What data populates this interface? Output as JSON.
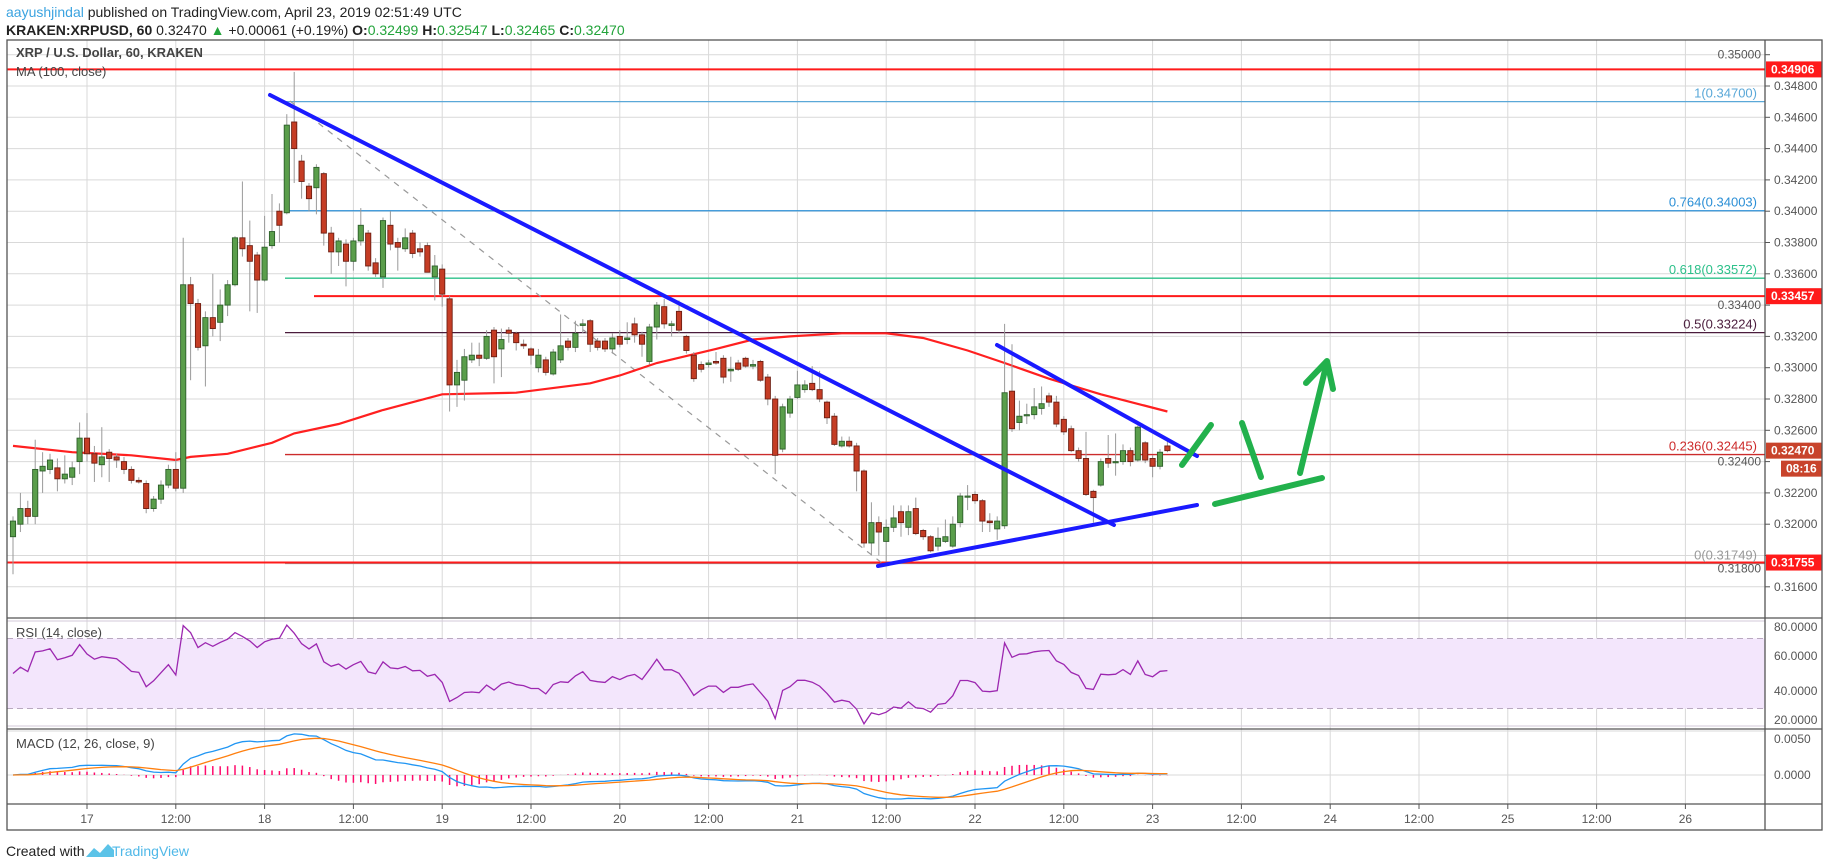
{
  "header": {
    "author": "aayushjindal",
    "published": " published on TradingView.com, April 23, 2019 02:51:49 UTC",
    "symbol": "KRAKEN:XRPUSD, 60",
    "last": "0.32470",
    "change": "+0.00061 (+0.19%)",
    "o_label": "O:",
    "o": "0.32499",
    "h_label": "H:",
    "h": "0.32547",
    "l_label": "L:",
    "l": "0.32465",
    "c_label": "C:",
    "c": "0.32470"
  },
  "footer": {
    "created_with": "Created with",
    "brand": "TradingView"
  },
  "colors": {
    "up": "#5a9e4b",
    "up_border": "#2d5f2a",
    "down": "#c53d25",
    "down_border": "#6e1e12",
    "ma": "#ff2020",
    "trendline": "#1a1aff",
    "arrow": "#22b14c",
    "rsi": "#9c27b0",
    "rsi_band": "#f3e6fc",
    "macd": "#2196f3",
    "signal": "#ff7f0e",
    "hist": "#ff0a6c",
    "author": "#3ba3e0",
    "ohlc": "#22a33a",
    "level_box": "#ff1a1a",
    "price_box": "#c8432b"
  },
  "chart_data": {
    "type": "candlestick",
    "title": "XRP / U.S. Dollar, 60, KRAKEN",
    "first_candle": "2019-04-16 14:00",
    "interval_minutes": 60,
    "price_range": [
      0.3145,
      0.3509
    ],
    "grid": true,
    "price_ticks": [
      "0.35000",
      "0.34800",
      "0.34600",
      "0.34400",
      "0.34200",
      "0.34000",
      "0.33800",
      "0.33600",
      "0.33400",
      "0.33200",
      "0.33000",
      "0.32800",
      "0.32600",
      "0.32400",
      "0.32200",
      "0.32000",
      "0.31800",
      "0.31600"
    ],
    "time_ticks": [
      "17",
      "12:00",
      "18",
      "12:00",
      "19",
      "12:00",
      "20",
      "12:00",
      "21",
      "12:00",
      "22",
      "12:00",
      "23",
      "12:00",
      "24",
      "12:00",
      "25",
      "12:00",
      "26"
    ],
    "ohlc": [
      [
        0.3192,
        0.3205,
        0.3168,
        0.3202
      ],
      [
        0.32,
        0.322,
        0.3195,
        0.321
      ],
      [
        0.321,
        0.3215,
        0.32,
        0.3205
      ],
      [
        0.3205,
        0.3254,
        0.32,
        0.3235
      ],
      [
        0.3234,
        0.3246,
        0.322,
        0.3237
      ],
      [
        0.3235,
        0.3245,
        0.3232,
        0.3241
      ],
      [
        0.3236,
        0.3242,
        0.3221,
        0.3229
      ],
      [
        0.3229,
        0.3244,
        0.3226,
        0.3232
      ],
      [
        0.323,
        0.324,
        0.3225,
        0.3236
      ],
      [
        0.324,
        0.3265,
        0.3232,
        0.3255
      ],
      [
        0.3255,
        0.3271,
        0.324,
        0.3245
      ],
      [
        0.3245,
        0.325,
        0.3227,
        0.3239
      ],
      [
        0.3238,
        0.3262,
        0.323,
        0.3243
      ],
      [
        0.3246,
        0.3248,
        0.3227,
        0.3242
      ],
      [
        0.3243,
        0.3245,
        0.3236,
        0.3241
      ],
      [
        0.324,
        0.3243,
        0.3232,
        0.3235
      ],
      [
        0.3235,
        0.3237,
        0.3226,
        0.3228
      ],
      [
        0.3228,
        0.323,
        0.3226,
        0.3227
      ],
      [
        0.3226,
        0.3228,
        0.3207,
        0.321
      ],
      [
        0.321,
        0.3218,
        0.3208,
        0.3216
      ],
      [
        0.3216,
        0.3228,
        0.3213,
        0.3225
      ],
      [
        0.3225,
        0.3238,
        0.3223,
        0.3235
      ],
      [
        0.3235,
        0.3246,
        0.3221,
        0.3223
      ],
      [
        0.3223,
        0.3383,
        0.322,
        0.3353
      ],
      [
        0.3353,
        0.3358,
        0.3292,
        0.3341
      ],
      [
        0.3341,
        0.3344,
        0.3311,
        0.3313
      ],
      [
        0.3314,
        0.3336,
        0.3288,
        0.3332
      ],
      [
        0.3332,
        0.336,
        0.332,
        0.3325
      ],
      [
        0.3329,
        0.335,
        0.3317,
        0.334
      ],
      [
        0.334,
        0.3356,
        0.3333,
        0.3353
      ],
      [
        0.3353,
        0.3384,
        0.3352,
        0.3383
      ],
      [
        0.3383,
        0.3419,
        0.3371,
        0.3376
      ],
      [
        0.3378,
        0.3394,
        0.3336,
        0.3368
      ],
      [
        0.3372,
        0.3374,
        0.3335,
        0.3356
      ],
      [
        0.3356,
        0.3397,
        0.3355,
        0.3377
      ],
      [
        0.3378,
        0.3411,
        0.3376,
        0.3387
      ],
      [
        0.34,
        0.3405,
        0.338,
        0.3391
      ],
      [
        0.3399,
        0.3462,
        0.3398,
        0.3455
      ],
      [
        0.3457,
        0.3489,
        0.3418,
        0.344
      ],
      [
        0.3432,
        0.3436,
        0.3408,
        0.3419
      ],
      [
        0.3416,
        0.3418,
        0.34,
        0.3408
      ],
      [
        0.3415,
        0.343,
        0.3398,
        0.3428
      ],
      [
        0.3424,
        0.3425,
        0.3378,
        0.3386
      ],
      [
        0.3386,
        0.339,
        0.336,
        0.3374
      ],
      [
        0.3374,
        0.3383,
        0.3365,
        0.3381
      ],
      [
        0.3379,
        0.3382,
        0.3352,
        0.3368
      ],
      [
        0.3368,
        0.3383,
        0.3362,
        0.3381
      ],
      [
        0.3381,
        0.3402,
        0.3378,
        0.3391
      ],
      [
        0.3386,
        0.3388,
        0.3362,
        0.3365
      ],
      [
        0.3367,
        0.337,
        0.3358,
        0.336
      ],
      [
        0.3358,
        0.3396,
        0.3351,
        0.3394
      ],
      [
        0.3391,
        0.34,
        0.3375,
        0.3379
      ],
      [
        0.338,
        0.3383,
        0.3362,
        0.3377
      ],
      [
        0.3376,
        0.3389,
        0.3374,
        0.3383
      ],
      [
        0.3386,
        0.3388,
        0.337,
        0.3373
      ],
      [
        0.3376,
        0.338,
        0.3371,
        0.3374
      ],
      [
        0.3378,
        0.338,
        0.3361,
        0.3361
      ],
      [
        0.3358,
        0.3372,
        0.3343,
        0.3365
      ],
      [
        0.3363,
        0.3366,
        0.3339,
        0.3347
      ],
      [
        0.3344,
        0.3346,
        0.3272,
        0.3289
      ],
      [
        0.3289,
        0.3305,
        0.3275,
        0.3297
      ],
      [
        0.3292,
        0.3312,
        0.3279,
        0.3307
      ],
      [
        0.3305,
        0.3316,
        0.3303,
        0.3308
      ],
      [
        0.3308,
        0.3316,
        0.3301,
        0.3306
      ],
      [
        0.3306,
        0.3324,
        0.3305,
        0.332
      ],
      [
        0.3324,
        0.3326,
        0.329,
        0.3307
      ],
      [
        0.3312,
        0.3325,
        0.3294,
        0.3318
      ],
      [
        0.3324,
        0.3326,
        0.3316,
        0.3322
      ],
      [
        0.3322,
        0.3323,
        0.3311,
        0.3316
      ],
      [
        0.3315,
        0.3318,
        0.3312,
        0.3314
      ],
      [
        0.3312,
        0.3313,
        0.3302,
        0.3308
      ],
      [
        0.33,
        0.3312,
        0.3297,
        0.3308
      ],
      [
        0.3305,
        0.3307,
        0.3295,
        0.3297
      ],
      [
        0.3296,
        0.3312,
        0.3295,
        0.331
      ],
      [
        0.3305,
        0.3334,
        0.3303,
        0.3314
      ],
      [
        0.3317,
        0.3319,
        0.3311,
        0.3313
      ],
      [
        0.3313,
        0.333,
        0.331,
        0.3322
      ],
      [
        0.3327,
        0.3331,
        0.3322,
        0.3328
      ],
      [
        0.333,
        0.3331,
        0.331,
        0.3315
      ],
      [
        0.3317,
        0.3319,
        0.3311,
        0.3313
      ],
      [
        0.3317,
        0.3319,
        0.331,
        0.3312
      ],
      [
        0.3312,
        0.3322,
        0.3309,
        0.3319
      ],
      [
        0.332,
        0.3324,
        0.3313,
        0.3315
      ],
      [
        0.3318,
        0.3329,
        0.3315,
        0.3319
      ],
      [
        0.3328,
        0.3332,
        0.3316,
        0.3321
      ],
      [
        0.3321,
        0.3323,
        0.3307,
        0.3315
      ],
      [
        0.3304,
        0.3328,
        0.3302,
        0.3326
      ],
      [
        0.3326,
        0.3342,
        0.3318,
        0.334
      ],
      [
        0.3339,
        0.3344,
        0.3325,
        0.3328
      ],
      [
        0.3327,
        0.333,
        0.332,
        0.3328
      ],
      [
        0.3336,
        0.3343,
        0.3322,
        0.3324
      ],
      [
        0.332,
        0.3321,
        0.3309,
        0.3311
      ],
      [
        0.3308,
        0.331,
        0.3291,
        0.3293
      ],
      [
        0.3302,
        0.3304,
        0.3297,
        0.3299
      ],
      [
        0.3302,
        0.3305,
        0.33,
        0.3303
      ],
      [
        0.3304,
        0.331,
        0.3302,
        0.3303
      ],
      [
        0.3306,
        0.3308,
        0.329,
        0.3294
      ],
      [
        0.3298,
        0.3307,
        0.3291,
        0.3299
      ],
      [
        0.3303,
        0.3305,
        0.3298,
        0.3299
      ],
      [
        0.3306,
        0.3307,
        0.33,
        0.3301
      ],
      [
        0.3301,
        0.3305,
        0.3299,
        0.3302
      ],
      [
        0.3304,
        0.3305,
        0.3291,
        0.3292
      ],
      [
        0.3294,
        0.3296,
        0.3276,
        0.328
      ],
      [
        0.328,
        0.3282,
        0.3232,
        0.3244
      ],
      [
        0.3248,
        0.3277,
        0.3246,
        0.3275
      ],
      [
        0.3271,
        0.3282,
        0.3268,
        0.328
      ],
      [
        0.3281,
        0.3298,
        0.328,
        0.3289
      ],
      [
        0.3286,
        0.3292,
        0.3284,
        0.3289
      ],
      [
        0.329,
        0.3301,
        0.3285,
        0.3286
      ],
      [
        0.3286,
        0.3298,
        0.3278,
        0.328
      ],
      [
        0.3278,
        0.3279,
        0.3264,
        0.3268
      ],
      [
        0.3269,
        0.3271,
        0.325,
        0.3251
      ],
      [
        0.325,
        0.3256,
        0.3249,
        0.3253
      ],
      [
        0.3253,
        0.3256,
        0.3249,
        0.325
      ],
      [
        0.325,
        0.3252,
        0.3221,
        0.3234
      ],
      [
        0.3234,
        0.3235,
        0.3185,
        0.3188
      ],
      [
        0.3188,
        0.3214,
        0.318,
        0.3201
      ],
      [
        0.3201,
        0.3205,
        0.318,
        0.3195
      ],
      [
        0.3189,
        0.3203,
        0.3176,
        0.3198
      ],
      [
        0.3198,
        0.3212,
        0.3195,
        0.3204
      ],
      [
        0.3208,
        0.3212,
        0.3192,
        0.3201
      ],
      [
        0.3198,
        0.3212,
        0.3193,
        0.3208
      ],
      [
        0.321,
        0.3217,
        0.3193,
        0.3194
      ],
      [
        0.3196,
        0.3197,
        0.319,
        0.3192
      ],
      [
        0.3192,
        0.3193,
        0.3182,
        0.3183
      ],
      [
        0.3186,
        0.3198,
        0.3183,
        0.3191
      ],
      [
        0.3189,
        0.3203,
        0.3188,
        0.3192
      ],
      [
        0.3186,
        0.3205,
        0.3185,
        0.32
      ],
      [
        0.3201,
        0.322,
        0.3198,
        0.3218
      ],
      [
        0.3218,
        0.3225,
        0.3209,
        0.3218
      ],
      [
        0.3219,
        0.3221,
        0.3213,
        0.3215
      ],
      [
        0.3215,
        0.3216,
        0.3195,
        0.3202
      ],
      [
        0.3202,
        0.3207,
        0.3195,
        0.3201
      ],
      [
        0.3197,
        0.3205,
        0.319,
        0.3202
      ],
      [
        0.3199,
        0.3328,
        0.3197,
        0.3284
      ],
      [
        0.3285,
        0.3315,
        0.3259,
        0.3261
      ],
      [
        0.3265,
        0.3279,
        0.326,
        0.3269
      ],
      [
        0.327,
        0.3277,
        0.3264,
        0.327
      ],
      [
        0.327,
        0.3287,
        0.3267,
        0.3275
      ],
      [
        0.3274,
        0.3288,
        0.327,
        0.3277
      ],
      [
        0.3282,
        0.3284,
        0.3275,
        0.3278
      ],
      [
        0.3278,
        0.3282,
        0.3262,
        0.3264
      ],
      [
        0.3267,
        0.3269,
        0.3257,
        0.3259
      ],
      [
        0.3261,
        0.3263,
        0.3246,
        0.3247
      ],
      [
        0.3247,
        0.3249,
        0.324,
        0.3242
      ],
      [
        0.3242,
        0.3259,
        0.3218,
        0.3219
      ],
      [
        0.3221,
        0.3222,
        0.3201,
        0.3217
      ],
      [
        0.3225,
        0.3242,
        0.3224,
        0.324
      ],
      [
        0.3242,
        0.3257,
        0.3236,
        0.3239
      ],
      [
        0.324,
        0.3258,
        0.3231,
        0.324
      ],
      [
        0.324,
        0.3251,
        0.3238,
        0.3247
      ],
      [
        0.3247,
        0.3249,
        0.3237,
        0.324
      ],
      [
        0.3241,
        0.3263,
        0.324,
        0.3262
      ],
      [
        0.3252,
        0.3253,
        0.3239,
        0.3241
      ],
      [
        0.3242,
        0.3244,
        0.323,
        0.3237
      ],
      [
        0.3237,
        0.3248,
        0.3235,
        0.3246
      ],
      [
        0.325,
        0.3255,
        0.3246,
        0.3247
      ]
    ],
    "ma": {
      "label": "MA (100, close)",
      "points": [
        [
          "2019-04-16 14:00",
          0.325
        ],
        [
          "2019-04-16 22:00",
          0.3246
        ],
        [
          "2019-04-17 06:00",
          0.3244
        ],
        [
          "2019-04-17 12:00",
          0.3241
        ],
        [
          "2019-04-17 14:00",
          0.3243
        ],
        [
          "2019-04-17 19:00",
          0.3245
        ],
        [
          "2019-04-18 01:00",
          0.3252
        ],
        [
          "2019-04-18 04:00",
          0.3258
        ],
        [
          "2019-04-18 10:00",
          0.3264
        ],
        [
          "2019-04-18 16:00",
          0.3273
        ],
        [
          "2019-04-19 00:00",
          0.3283
        ],
        [
          "2019-04-19 10:00",
          0.3284
        ],
        [
          "2019-04-19 20:00",
          0.329
        ],
        [
          "2019-04-20 00:00",
          0.3295
        ],
        [
          "2019-04-20 05:00",
          0.3303
        ],
        [
          "2019-04-20 13:00",
          0.3312
        ],
        [
          "2019-04-20 18:00",
          0.3318
        ],
        [
          "2019-04-20 23:00",
          0.332
        ],
        [
          "2019-04-21 06:00",
          0.3322
        ],
        [
          "2019-04-21 12:00",
          0.3322
        ],
        [
          "2019-04-21 17:00",
          0.3319
        ],
        [
          "2019-04-21 23:00",
          0.3311
        ],
        [
          "2019-04-22 04:00",
          0.3303
        ],
        [
          "2019-04-22 10:00",
          0.3293
        ],
        [
          "2019-04-22 17:00",
          0.3283
        ],
        [
          "2019-04-23 02:00",
          0.3272
        ]
      ]
    },
    "fib_levels": [
      {
        "label": "1(0.34700)",
        "value": 0.347,
        "color": "#5aa8d8"
      },
      {
        "label": "0.764(0.34003)",
        "value": 0.34003,
        "color": "#2b8fd6"
      },
      {
        "label": "0.618(0.33572)",
        "value": 0.33572,
        "color": "#2cc08a"
      },
      {
        "label": "0.5(0.33224)",
        "value": 0.33224,
        "color": "#4a1c3c"
      },
      {
        "label": "0.236(0.32445)",
        "value": 0.32445,
        "color": "#cc2b2b"
      },
      {
        "label": "0(0.31749)",
        "value": 0.31749,
        "color": "#999999"
      }
    ],
    "levels": [
      {
        "label": "0.34906",
        "value": 0.34906,
        "full": true
      },
      {
        "label": "0.33457",
        "value": 0.33457,
        "full": false
      },
      {
        "label": "0.31755",
        "value": 0.31755,
        "full": true
      }
    ],
    "current_price": {
      "label": "0.32470",
      "value": 0.3247,
      "countdown": "08:16"
    },
    "rsi": {
      "label": "RSI (14, close)",
      "period": 14,
      "upper": 70,
      "lower": 30,
      "ticks": [
        "80.0000",
        "60.0000",
        "40.0000",
        "20.0000"
      ],
      "range": [
        20,
        80
      ]
    },
    "macd": {
      "label": "MACD (12, 26, close, 9)",
      "fast": 12,
      "slow": 26,
      "signal": 9,
      "ticks": [
        "0.0050",
        "0.0000"
      ]
    }
  }
}
